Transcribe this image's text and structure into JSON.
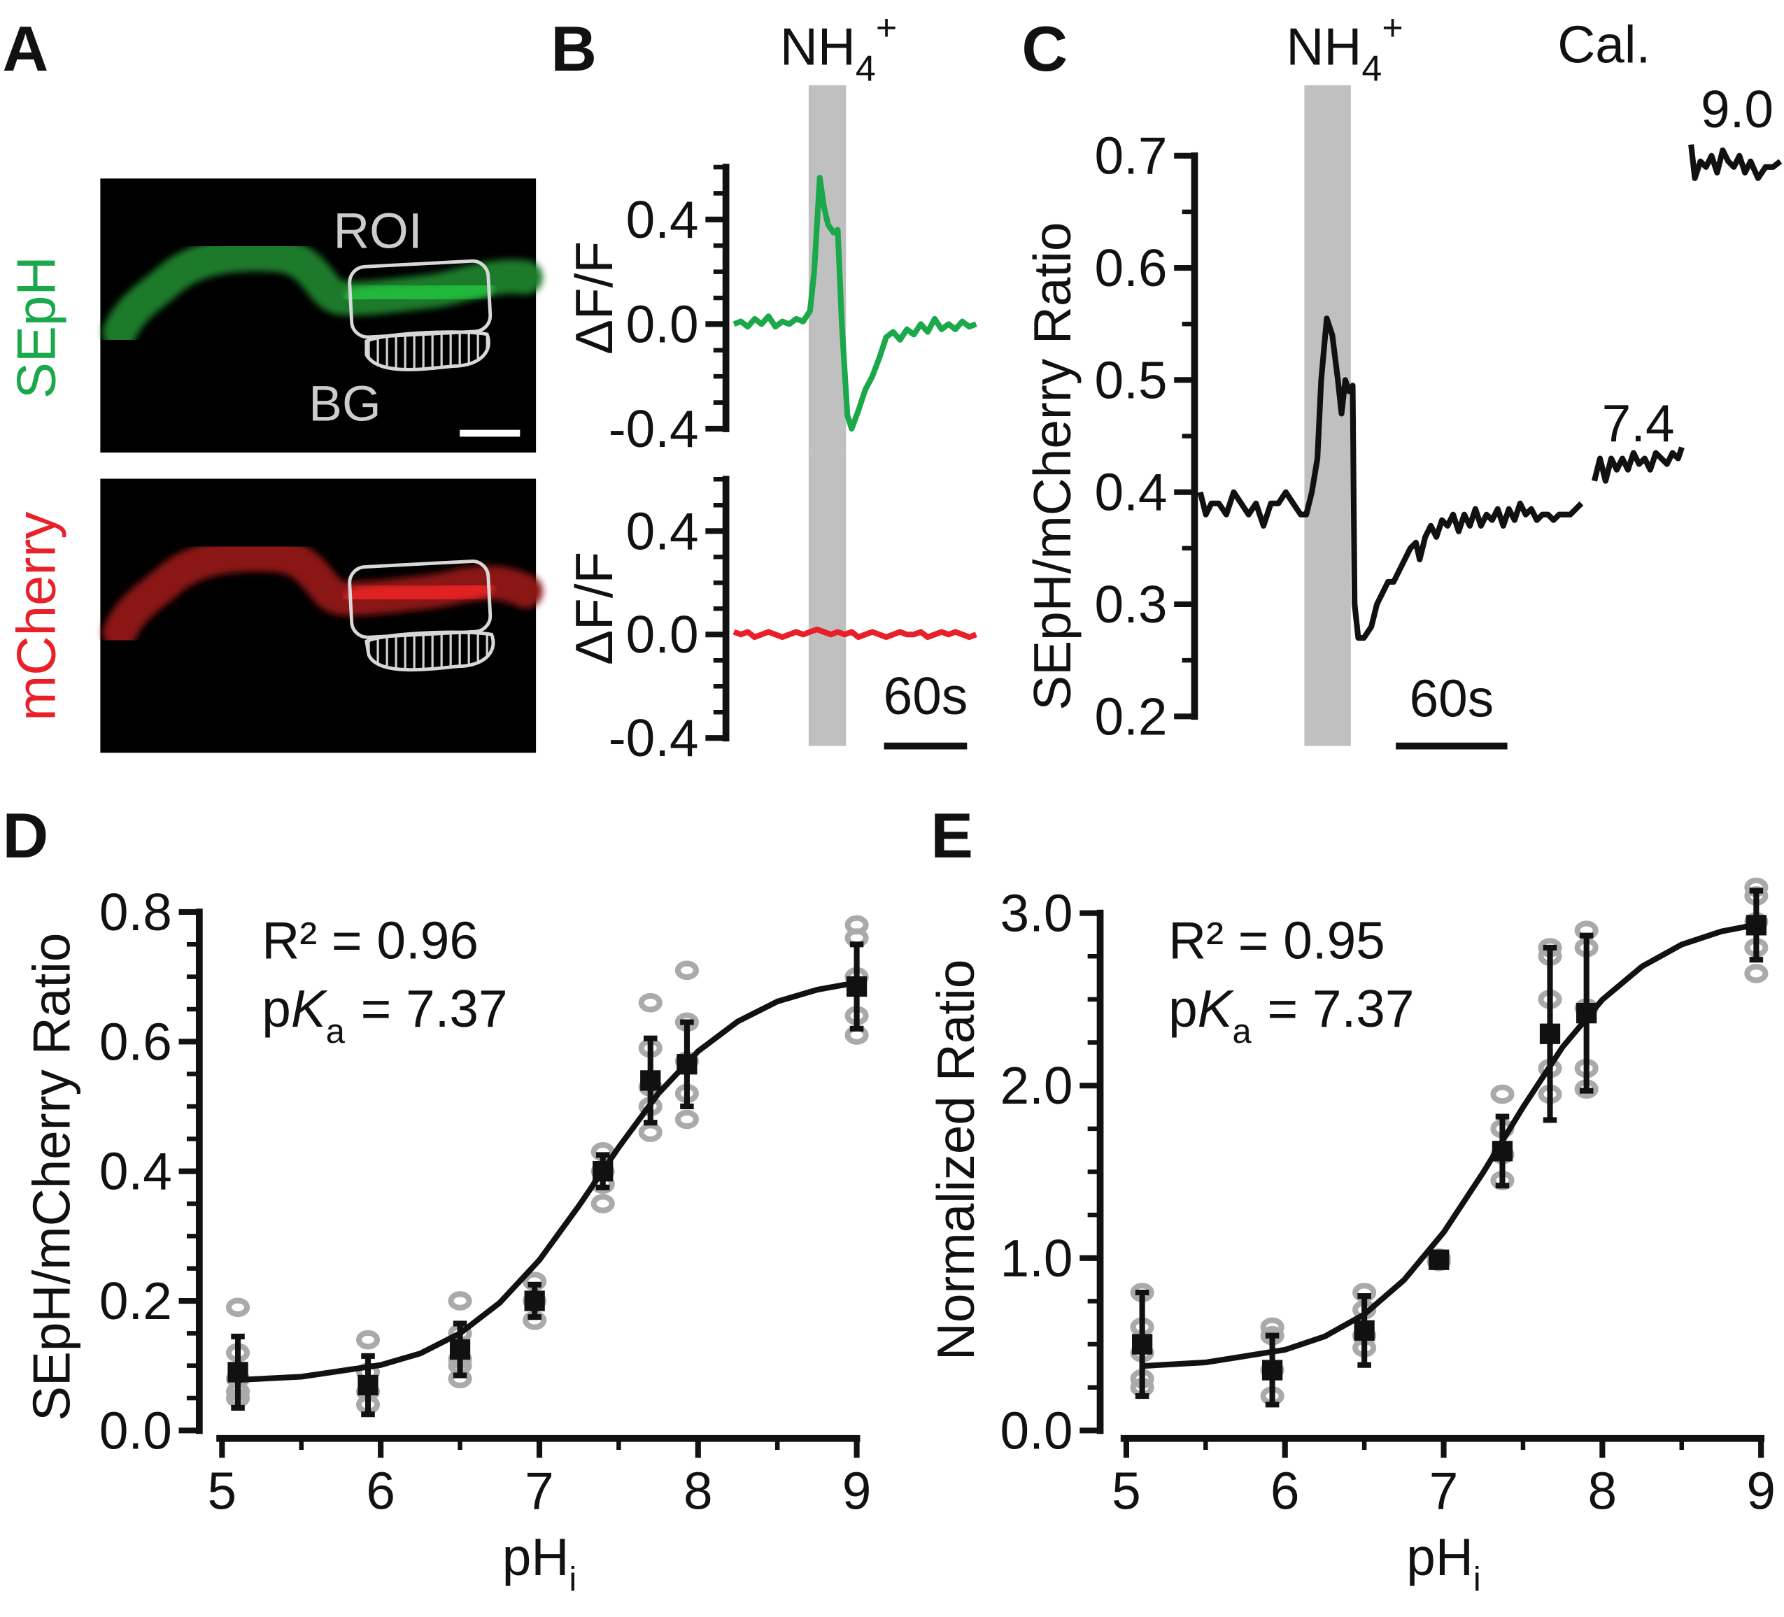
{
  "panel_labels": [
    "A",
    "B",
    "C",
    "D",
    "E"
  ],
  "image_panel": {
    "channels": [
      "SEpH",
      "mCherry"
    ],
    "roi_label": "ROI",
    "bg_label": "BG"
  },
  "chart_data": [
    {
      "type": "line",
      "ylabel": "ΔF/F",
      "color": "#1aa84a",
      "x": [
        0,
        5,
        10,
        15,
        20,
        25,
        30,
        35,
        40,
        45,
        50,
        55,
        58,
        62,
        65,
        68,
        72,
        75,
        78,
        82,
        85,
        90,
        95,
        100,
        105,
        110,
        115,
        120,
        125,
        130,
        135,
        140,
        145,
        150,
        155,
        160,
        165,
        170,
        175
      ],
      "values": [
        0.0,
        0.01,
        -0.01,
        0.02,
        0.0,
        0.03,
        -0.01,
        0.01,
        0.0,
        0.02,
        0.01,
        0.05,
        0.2,
        0.56,
        0.45,
        0.38,
        0.35,
        0.36,
        0.0,
        -0.35,
        -0.4,
        -0.33,
        -0.25,
        -0.2,
        -0.13,
        -0.05,
        -0.03,
        -0.06,
        -0.02,
        -0.04,
        0.0,
        -0.03,
        0.02,
        -0.02,
        0.0,
        -0.02,
        0.01,
        -0.01,
        0.0
      ],
      "xlim": [
        0,
        175
      ],
      "ylim": [
        -0.4,
        0.6
      ],
      "yticks": [
        -0.4,
        {
          "value": 0,
          "label": "0.0"
        },
        0.4
      ],
      "yminorticks": [
        -0.3,
        -0.2,
        -0.1,
        0.1,
        0.2,
        0.3,
        0.5,
        0.6
      ],
      "shade": [
        54,
        81
      ],
      "shade_color": "#c0c0c0",
      "shade_label": {
        "text": "NH",
        "subscript": "4",
        "superscript": "+"
      }
    },
    {
      "type": "line",
      "ylabel": "ΔF/F",
      "color": "#e8202a",
      "x": [
        0,
        5,
        10,
        15,
        20,
        25,
        30,
        35,
        40,
        45,
        50,
        55,
        60,
        65,
        70,
        75,
        80,
        85,
        90,
        95,
        100,
        105,
        110,
        115,
        120,
        125,
        130,
        135,
        140,
        145,
        150,
        155,
        160,
        165,
        170,
        175
      ],
      "values": [
        0.01,
        0.0,
        0.01,
        -0.01,
        0.0,
        0.01,
        0.0,
        -0.01,
        0.0,
        0.01,
        0.0,
        0.01,
        0.02,
        0.01,
        0.0,
        0.01,
        0.0,
        0.01,
        -0.01,
        0.0,
        0.01,
        0.0,
        -0.01,
        0.0,
        0.01,
        0.0,
        0.0,
        0.01,
        -0.01,
        0.0,
        0.01,
        0.0,
        0.01,
        0.0,
        -0.01,
        0.0
      ],
      "xlim": [
        0,
        175
      ],
      "ylim": [
        -0.4,
        0.6
      ],
      "yticks": [
        -0.4,
        {
          "value": 0,
          "label": "0.0"
        },
        0.4
      ],
      "yminorticks": [
        -0.3,
        -0.2,
        -0.1,
        0.1,
        0.2,
        0.3,
        0.5,
        0.6
      ],
      "shade": [
        54,
        81
      ],
      "shade_color": "#c0c0c0",
      "scalebar": {
        "value": 60,
        "label": "60s"
      }
    },
    {
      "type": "line",
      "ylabel": "SEpH/mCherry Ratio",
      "color": "#111111",
      "x": [
        0,
        3,
        6,
        10,
        14,
        18,
        22,
        26,
        30,
        34,
        38,
        42,
        46,
        50,
        54,
        57,
        60,
        63,
        65,
        68,
        71,
        74,
        76,
        78,
        80,
        82,
        83,
        85,
        88,
        92,
        95,
        98,
        101,
        104,
        107,
        110,
        113,
        116,
        118,
        121,
        124,
        127,
        130,
        133,
        136,
        139,
        142,
        145,
        148,
        151,
        154,
        157,
        160,
        163,
        166,
        169,
        172,
        175,
        178,
        181,
        184,
        187,
        190,
        193,
        196,
        199,
        202,
        205,
        208,
        212,
        215,
        218,
        221,
        224,
        227,
        230,
        233,
        236,
        239,
        242,
        245,
        248,
        251,
        254,
        257,
        259,
        262,
        264,
        266,
        269,
        272,
        275,
        278,
        281,
        284,
        287,
        290,
        293,
        296,
        300,
        304,
        308,
        312
      ],
      "values": [
        0.4,
        0.38,
        0.39,
        0.39,
        0.38,
        0.4,
        0.39,
        0.38,
        0.39,
        0.37,
        0.39,
        0.39,
        0.4,
        0.39,
        0.38,
        0.38,
        0.4,
        0.43,
        0.5,
        0.555,
        0.54,
        0.5,
        0.47,
        0.5,
        0.49,
        0.495,
        0.3,
        0.27,
        0.27,
        0.28,
        0.3,
        0.31,
        0.32,
        0.32,
        0.33,
        0.34,
        0.35,
        0.355,
        0.34,
        0.36,
        0.37,
        0.36,
        0.375,
        0.37,
        0.38,
        0.365,
        0.38,
        0.37,
        0.385,
        0.37,
        0.38,
        0.375,
        0.385,
        0.37,
        0.385,
        0.375,
        0.39,
        0.38,
        0.385,
        0.375,
        0.38,
        0.38,
        0.375,
        0.38,
        0.38,
        0.38,
        0.385,
        0.39,
        null,
        0.41,
        0.43,
        0.41,
        0.43,
        0.42,
        0.43,
        0.42,
        0.435,
        0.425,
        0.43,
        0.42,
        0.435,
        0.43,
        0.425,
        0.435,
        0.43,
        0.44,
        null,
        0.71,
        0.68,
        0.695,
        0.69,
        0.7,
        0.685,
        0.705,
        0.695,
        0.69,
        0.7,
        0.685,
        0.695,
        0.68,
        0.69,
        0.69,
        0.695
      ],
      "xlim": [
        0,
        312
      ],
      "ylim": [
        0.2,
        0.7
      ],
      "yticks": [
        0.2,
        0.3,
        0.4,
        0.5,
        0.6,
        0.7
      ],
      "yminorticks": [
        0.25,
        0.35,
        0.45,
        0.55,
        0.65
      ],
      "shade": [
        56,
        81
      ],
      "shade_color": "#c0c0c0",
      "shade_label": {
        "text": "NH",
        "subscript": "4",
        "superscript": "+"
      },
      "scalebar": {
        "value": 60,
        "label": "60s"
      },
      "annotations": [
        "Cal.",
        "7.4",
        "9.0"
      ]
    },
    {
      "type": "scatter",
      "ylabel": "SEpH/mCherry Ratio",
      "xlabel": "pH",
      "xlabel_subscript": "i",
      "color": "#111111",
      "x": [
        5.1,
        5.92,
        6.5,
        6.97,
        7.4,
        7.7,
        7.93,
        9.0
      ],
      "values": [
        0.09,
        0.07,
        0.125,
        0.2,
        0.4,
        0.54,
        0.565,
        0.685
      ],
      "errors": [
        0.055,
        0.045,
        0.04,
        0.025,
        0.025,
        0.065,
        0.065,
        0.065
      ],
      "points": {
        "color": "#aaaaaa",
        "x": [
          5.1,
          5.1,
          5.1,
          5.1,
          5.1,
          5.92,
          5.92,
          5.92,
          5.92,
          6.5,
          6.5,
          6.5,
          6.5,
          6.5,
          6.97,
          6.97,
          6.97,
          7.4,
          7.4,
          7.4,
          7.4,
          7.7,
          7.7,
          7.7,
          7.7,
          7.7,
          7.93,
          7.93,
          7.93,
          7.93,
          7.93,
          9.0,
          9.0,
          9.0,
          9.0,
          9.0
        ],
        "y": [
          0.19,
          0.12,
          0.08,
          0.05,
          0.06,
          0.14,
          0.09,
          0.06,
          0.04,
          0.2,
          0.15,
          0.11,
          0.1,
          0.08,
          0.23,
          0.2,
          0.17,
          0.43,
          0.4,
          0.38,
          0.35,
          0.66,
          0.59,
          0.53,
          0.5,
          0.46,
          0.71,
          0.63,
          0.57,
          0.52,
          0.48,
          0.78,
          0.76,
          0.7,
          0.64,
          0.61
        ]
      },
      "fit": {
        "color": "#111111",
        "x": [
          5.1,
          5.5,
          6.0,
          6.25,
          6.5,
          6.75,
          7.0,
          7.25,
          7.5,
          7.75,
          8.0,
          8.25,
          8.5,
          8.75,
          9.0
        ],
        "values": [
          0.078,
          0.083,
          0.101,
          0.119,
          0.15,
          0.197,
          0.263,
          0.347,
          0.437,
          0.52,
          0.585,
          0.631,
          0.662,
          0.68,
          0.691
        ]
      },
      "xlim": [
        5,
        9
      ],
      "ylim": [
        0,
        0.8
      ],
      "xticks": [
        5,
        6,
        7,
        8,
        9
      ],
      "xminorticks": [
        5.5,
        6.5,
        7.5,
        8.5
      ],
      "yticks": [
        {
          "value": 0,
          "label": "0.0"
        },
        0.2,
        0.4,
        0.6,
        0.8
      ],
      "yminorticks": [
        0.05,
        0.1,
        0.15,
        0.25,
        0.3,
        0.35,
        0.45,
        0.5,
        0.55,
        0.65,
        0.7,
        0.75
      ],
      "r2_label": "R² = 0.96",
      "pka_label": {
        "prefix": "p",
        "symbol": "K",
        "subscript": "a",
        "text": "= 7.37"
      }
    },
    {
      "type": "scatter",
      "ylabel": "Normalized Ratio",
      "xlabel": "pH",
      "xlabel_subscript": "i",
      "color": "#111111",
      "x": [
        5.1,
        5.92,
        6.5,
        6.97,
        7.37,
        7.67,
        7.9,
        8.97
      ],
      "values": [
        0.5,
        0.35,
        0.58,
        0.99,
        1.62,
        2.3,
        2.42,
        2.93
      ],
      "errors": [
        0.3,
        0.2,
        0.2,
        0.03,
        0.2,
        0.5,
        0.45,
        0.2
      ],
      "points": {
        "color": "#aaaaaa",
        "x": [
          5.1,
          5.1,
          5.1,
          5.1,
          5.1,
          5.92,
          5.92,
          5.92,
          5.92,
          6.5,
          6.5,
          6.5,
          6.5,
          6.97,
          6.97,
          7.37,
          7.37,
          7.37,
          7.37,
          7.67,
          7.67,
          7.67,
          7.67,
          7.67,
          7.9,
          7.9,
          7.9,
          7.9,
          7.9,
          8.97,
          8.97,
          8.97,
          8.97,
          8.97
        ],
        "y": [
          0.8,
          0.6,
          0.45,
          0.3,
          0.25,
          0.6,
          0.55,
          0.35,
          0.2,
          0.8,
          0.7,
          0.55,
          0.48,
          1.0,
          0.98,
          1.95,
          1.75,
          1.6,
          1.45,
          2.8,
          2.75,
          2.5,
          2.1,
          1.95,
          2.9,
          2.8,
          2.45,
          2.1,
          1.98,
          3.15,
          3.1,
          2.95,
          2.8,
          2.65
        ]
      },
      "fit": {
        "color": "#111111",
        "x": [
          5.1,
          5.5,
          6.0,
          6.25,
          6.5,
          6.75,
          7.0,
          7.25,
          7.5,
          7.75,
          8.0,
          8.25,
          8.5,
          8.75,
          9.0
        ],
        "values": [
          0.374,
          0.395,
          0.468,
          0.545,
          0.674,
          0.872,
          1.149,
          1.498,
          1.875,
          2.224,
          2.498,
          2.691,
          2.818,
          2.894,
          2.939
        ]
      },
      "xlim": [
        5,
        9
      ],
      "ylim": [
        0,
        3
      ],
      "xticks": [
        5,
        6,
        7,
        8,
        9
      ],
      "xminorticks": [
        5.5,
        6.5,
        7.5,
        8.5
      ],
      "yticks": [
        {
          "value": 0,
          "label": "0.0"
        },
        {
          "value": 1,
          "label": "1.0"
        },
        {
          "value": 2,
          "label": "2.0"
        },
        {
          "value": 3,
          "label": "3.0"
        }
      ],
      "yminorticks": [
        0.25,
        0.5,
        0.75,
        1.25,
        1.5,
        1.75,
        2.25,
        2.5,
        2.75
      ],
      "r2_label": "R² = 0.95",
      "pka_label": {
        "prefix": "p",
        "symbol": "K",
        "subscript": "a",
        "text": "= 7.37"
      }
    }
  ]
}
